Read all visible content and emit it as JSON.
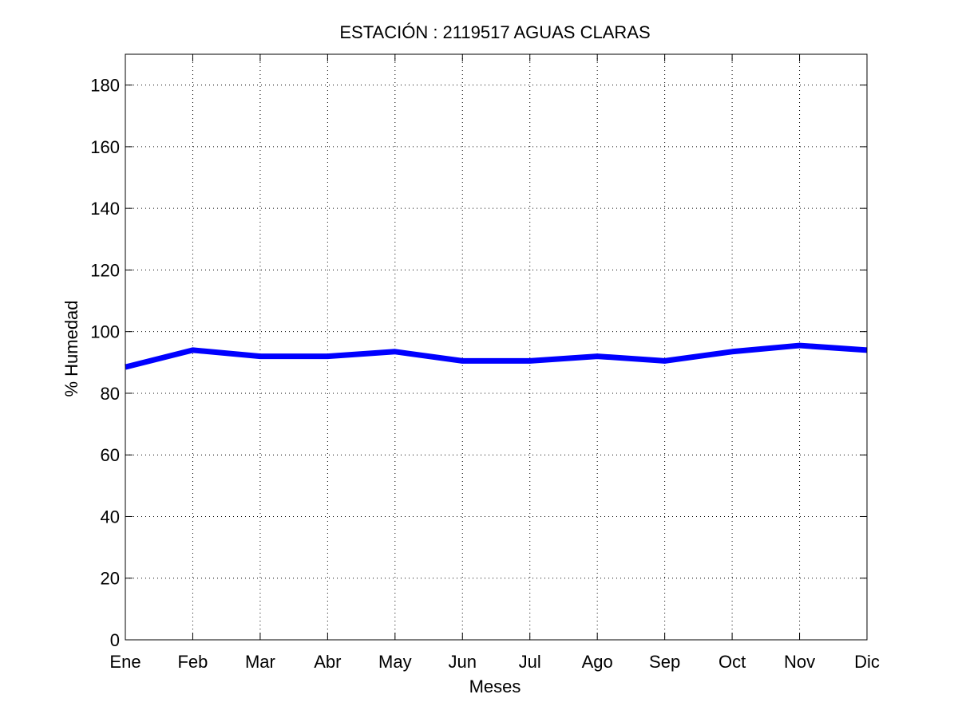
{
  "chart_data": {
    "type": "line",
    "title": "ESTACIÓN :  2119517  AGUAS CLARAS",
    "xlabel": "Meses",
    "ylabel": "% Humedad",
    "categories": [
      "Ene",
      "Feb",
      "Mar",
      "Abr",
      "May",
      "Jun",
      "Jul",
      "Ago",
      "Sep",
      "Oct",
      "Nov",
      "Dic"
    ],
    "series": [
      {
        "values": [
          88.5,
          94,
          92,
          92,
          93.5,
          90.5,
          90.5,
          92,
          90.5,
          93.5,
          95.5,
          94
        ],
        "color": "#0000ff"
      }
    ],
    "ylim": [
      0,
      190
    ],
    "yticks": [
      0,
      20,
      40,
      60,
      80,
      100,
      120,
      140,
      160,
      180
    ],
    "grid": true
  }
}
